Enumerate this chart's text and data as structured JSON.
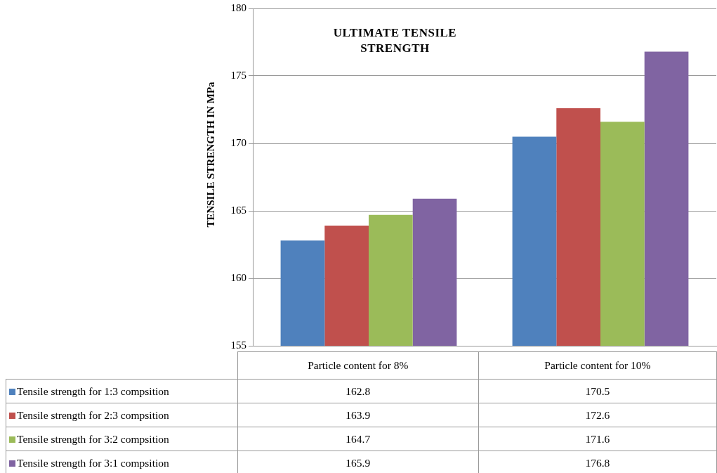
{
  "chart_data": {
    "type": "bar",
    "title": "ULTIMATE TENSILE STRENGTH",
    "ylabel": "TENSILE STRENGTH  IN MPa",
    "categories": [
      "Particle content for 8%",
      "Particle content for 10%"
    ],
    "series": [
      {
        "name": "Tensile strength for 1:3 compsition",
        "color": "#4f81bd",
        "values": [
          162.8,
          170.5
        ]
      },
      {
        "name": "Tensile strength for 2:3 compsition",
        "color": "#c0504d",
        "values": [
          163.9,
          172.6
        ]
      },
      {
        "name": "Tensile strength for 3:2 compsition",
        "color": "#9bbb59",
        "values": [
          164.7,
          171.6
        ]
      },
      {
        "name": "Tensile strength for 3:1 compsition",
        "color": "#8064a2",
        "values": [
          165.9,
          176.8
        ]
      }
    ],
    "ylim": [
      155,
      180
    ],
    "yticks": [
      155,
      160,
      165,
      170,
      175,
      180
    ],
    "grid": "y",
    "legend": "bottom",
    "data_labels": true
  }
}
